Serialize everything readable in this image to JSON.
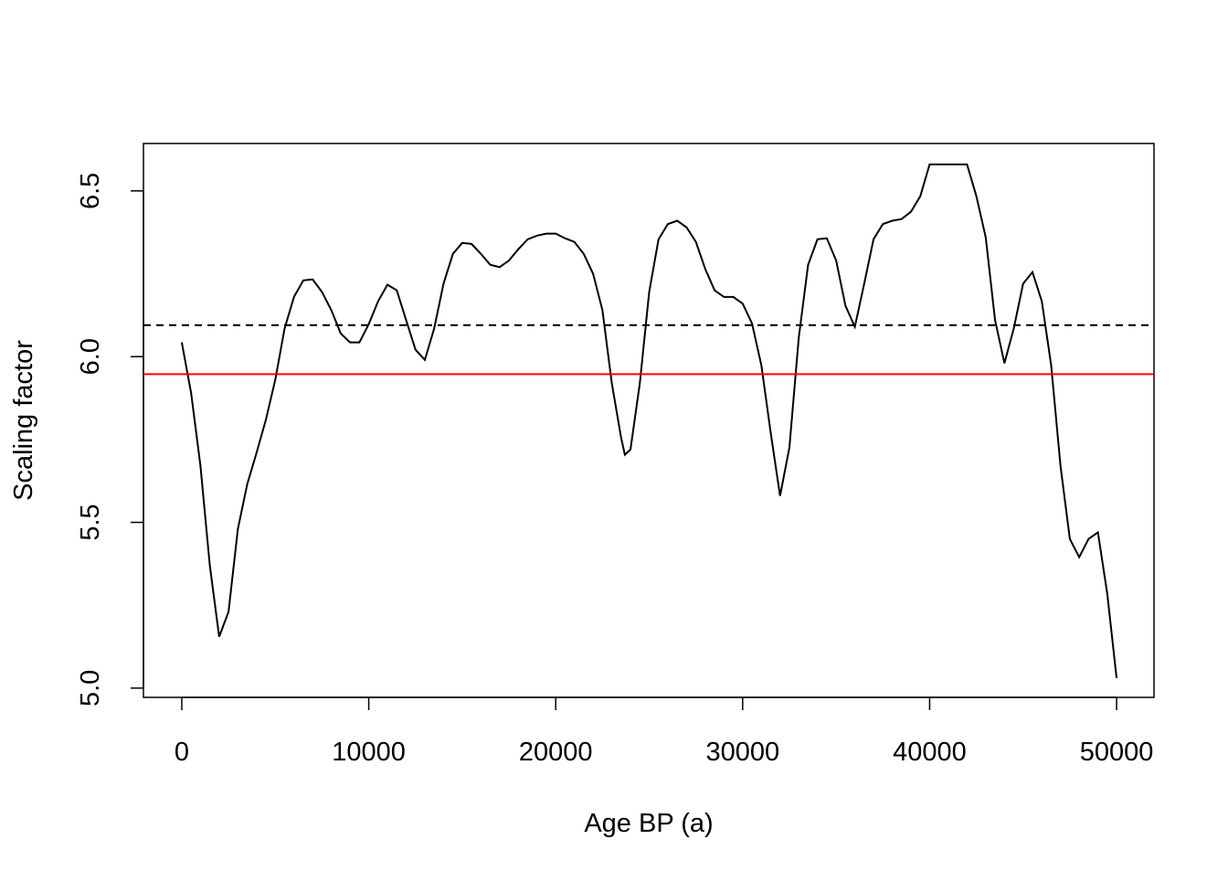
{
  "chart_data": {
    "type": "line",
    "x_label": "Age BP (a)",
    "y_label": "Scaling factor",
    "x": [
      0,
      500,
      1000,
      1500,
      2000,
      2500,
      3000,
      3500,
      4000,
      4500,
      5000,
      5500,
      6000,
      6500,
      7000,
      7500,
      8000,
      8500,
      9000,
      9500,
      10000,
      10500,
      11000,
      11500,
      12000,
      12500,
      13000,
      13500,
      14000,
      14500,
      15000,
      15500,
      16000,
      16500,
      17000,
      17500,
      18000,
      18500,
      19000,
      19500,
      20000,
      20500,
      21000,
      21500,
      22000,
      22500,
      23000,
      23500,
      23700,
      24000,
      24500,
      25000,
      25500,
      26000,
      26500,
      27000,
      27500,
      28000,
      28500,
      29000,
      29500,
      30000,
      30500,
      31000,
      31500,
      32000,
      32500,
      33000,
      33500,
      34000,
      34500,
      35000,
      35500,
      36000,
      36500,
      37000,
      37500,
      38000,
      38500,
      39000,
      39500,
      40000,
      40500,
      41000,
      41500,
      42000,
      42500,
      43000,
      43500,
      44000,
      44500,
      45000,
      45500,
      46000,
      46500,
      47000,
      47500,
      48000,
      48500,
      49000,
      49500,
      50000
    ],
    "series": [
      {
        "color": "#000000",
        "values": [
          6.043,
          5.89,
          5.67,
          5.37,
          5.155,
          5.23,
          5.48,
          5.615,
          5.71,
          5.81,
          5.93,
          6.085,
          6.18,
          6.23,
          6.233,
          6.195,
          6.14,
          6.07,
          6.043,
          6.043,
          6.098,
          6.167,
          6.217,
          6.2,
          6.11,
          6.021,
          5.99,
          6.085,
          6.22,
          6.31,
          6.343,
          6.34,
          6.31,
          6.277,
          6.27,
          6.29,
          6.324,
          6.354,
          6.365,
          6.371,
          6.371,
          6.357,
          6.346,
          6.31,
          6.25,
          6.14,
          5.92,
          5.755,
          5.704,
          5.72,
          5.92,
          6.195,
          6.354,
          6.4,
          6.41,
          6.39,
          6.346,
          6.264,
          6.2,
          6.18,
          6.18,
          6.16,
          6.1,
          5.974,
          5.77,
          5.58,
          5.726,
          6.057,
          6.277,
          6.354,
          6.357,
          6.29,
          6.153,
          6.09,
          6.22,
          6.354,
          6.4,
          6.41,
          6.415,
          6.437,
          6.484,
          6.58,
          6.58,
          6.58,
          6.58,
          6.58,
          6.484,
          6.36,
          6.11,
          5.98,
          6.085,
          6.22,
          6.255,
          6.167,
          5.974,
          5.67,
          5.45,
          5.395,
          5.45,
          5.47,
          5.285,
          5.03
        ]
      }
    ],
    "hlines": [
      {
        "value": 6.095,
        "color": "#000000",
        "dash": true
      },
      {
        "value": 5.947,
        "color": "#ff0000",
        "dash": false
      }
    ],
    "xlim": [
      -2050,
      52000
    ],
    "ylim": [
      4.972,
      6.643
    ],
    "xticks": [
      0,
      10000,
      20000,
      30000,
      40000,
      50000
    ],
    "yticks": [
      5.0,
      5.5,
      6.0,
      6.5
    ]
  }
}
